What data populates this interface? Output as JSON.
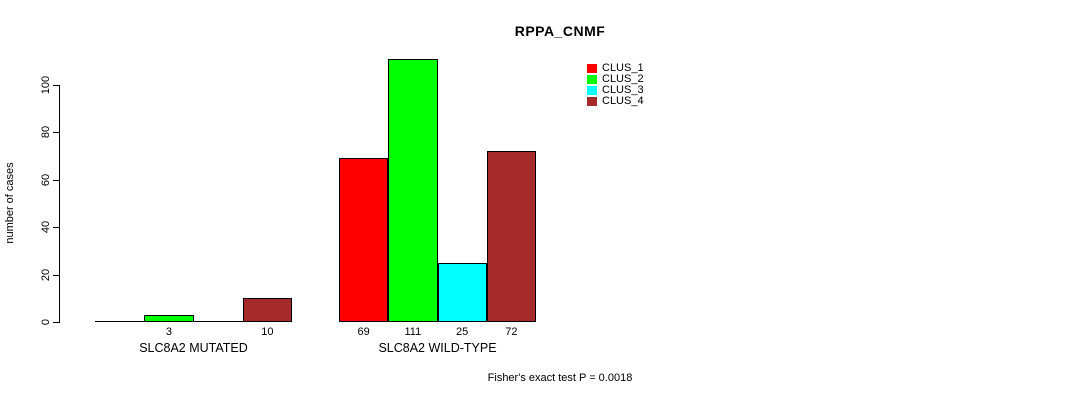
{
  "chart_data": {
    "type": "bar",
    "title": "RPPA_CNMF",
    "xlabel": "",
    "ylabel": "number of cases",
    "yticks": [
      0,
      20,
      40,
      60,
      80,
      100
    ],
    "ylim": [
      0,
      112
    ],
    "grid": false,
    "legend_position": "top-right",
    "series": [
      {
        "name": "CLUS_1",
        "color": "#ff0000"
      },
      {
        "name": "CLUS_2",
        "color": "#00ff00"
      },
      {
        "name": "CLUS_3",
        "color": "#00ffff"
      },
      {
        "name": "CLUS_4",
        "color": "#a52a2a"
      }
    ],
    "groups": [
      {
        "label": "SLC8A2 MUTATED",
        "values": [
          0,
          3,
          0,
          10
        ],
        "bar_labels": [
          "",
          "3",
          "",
          "10"
        ]
      },
      {
        "label": "SLC8A2 WILD-TYPE",
        "values": [
          69,
          111,
          25,
          72
        ],
        "bar_labels": [
          "69",
          "111",
          "25",
          "72"
        ]
      }
    ],
    "annotation": "Fisher's exact test P = 0.0018",
    "colors": {
      "axis": "#000000",
      "bar_border": "#000000",
      "background": "#ffffff"
    }
  }
}
